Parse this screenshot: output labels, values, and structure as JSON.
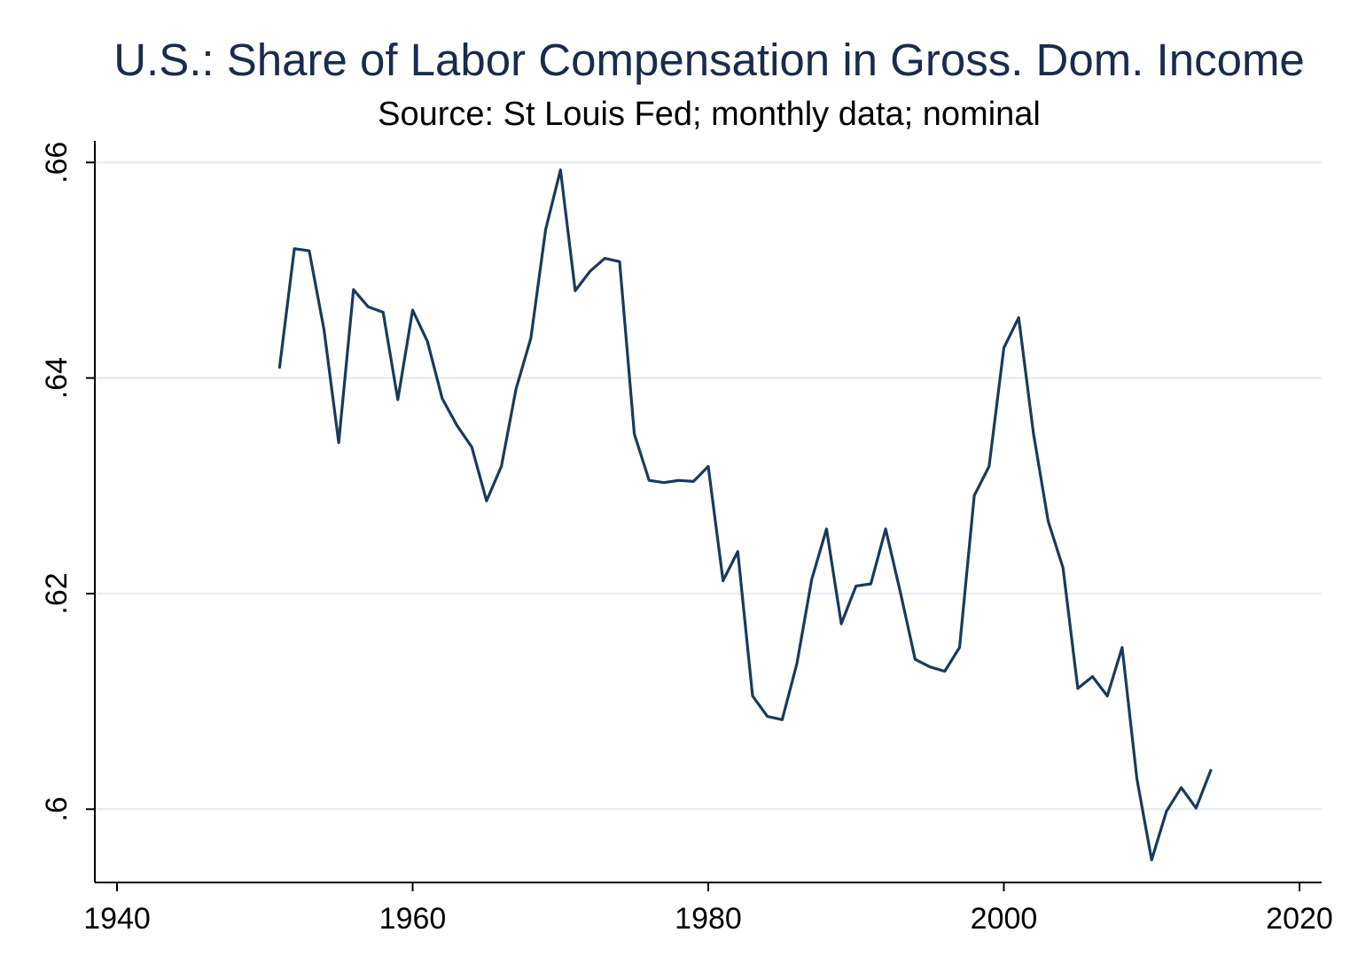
{
  "chart_data": {
    "type": "line",
    "title": "U.S.: Share of Labor Compensation in Gross. Dom. Income",
    "subtitle": "Source: St Louis Fed; monthly data; nominal",
    "xlabel": "",
    "ylabel": "",
    "xlim": [
      1938.5,
      2021.5
    ],
    "ylim": [
      0.5932,
      0.662
    ],
    "xticks": [
      1940,
      1960,
      1980,
      2000,
      2020
    ],
    "xtick_labels": [
      "1940",
      "1960",
      "1980",
      "2000",
      "2020"
    ],
    "yticks": [
      0.6,
      0.62,
      0.64,
      0.66
    ],
    "ytick_labels": [
      ".6",
      ".62",
      ".64",
      ".66"
    ],
    "grid": "horizontal",
    "line_color": "#1a3a5c",
    "gridline_color": "#e6eef2",
    "series": [
      {
        "x": [
          1951,
          1952,
          1953,
          1954,
          1955,
          1956,
          1957,
          1958,
          1959,
          1960,
          1961,
          1962,
          1963,
          1964,
          1965,
          1966,
          1967,
          1968,
          1969,
          1970,
          1971,
          1972,
          1973,
          1974,
          1975,
          1976,
          1977,
          1978,
          1979,
          1980,
          1981,
          1982,
          1983,
          1984,
          1985,
          1986,
          1987,
          1988,
          1989,
          1990,
          1991,
          1992,
          1993,
          1994,
          1995,
          1996,
          1997,
          1998,
          1999,
          2000,
          2001,
          2002,
          2003,
          2004,
          2005,
          2006,
          2007,
          2008,
          2009,
          2010,
          2011,
          2012,
          2013,
          2014
        ],
        "values": [
          0.641,
          0.652,
          0.6518,
          0.6445,
          0.634,
          0.6482,
          0.6466,
          0.6461,
          0.638,
          0.6463,
          0.6434,
          0.6381,
          0.6356,
          0.6336,
          0.6286,
          0.6318,
          0.639,
          0.6437,
          0.6538,
          0.6593,
          0.6481,
          0.6499,
          0.6511,
          0.6508,
          0.6348,
          0.6305,
          0.6303,
          0.6305,
          0.6304,
          0.6318,
          0.6212,
          0.6239,
          0.6105,
          0.6086,
          0.6083,
          0.6135,
          0.6213,
          0.626,
          0.6172,
          0.6207,
          0.6209,
          0.626,
          0.6201,
          0.6139,
          0.6132,
          0.6128,
          0.615,
          0.6291,
          0.6318,
          0.6428,
          0.6456,
          0.6349,
          0.6267,
          0.6224,
          0.6112,
          0.6123,
          0.6105,
          0.615,
          0.6028,
          0.5953,
          0.5998,
          0.602,
          0.6001,
          0.6036
        ]
      }
    ]
  }
}
